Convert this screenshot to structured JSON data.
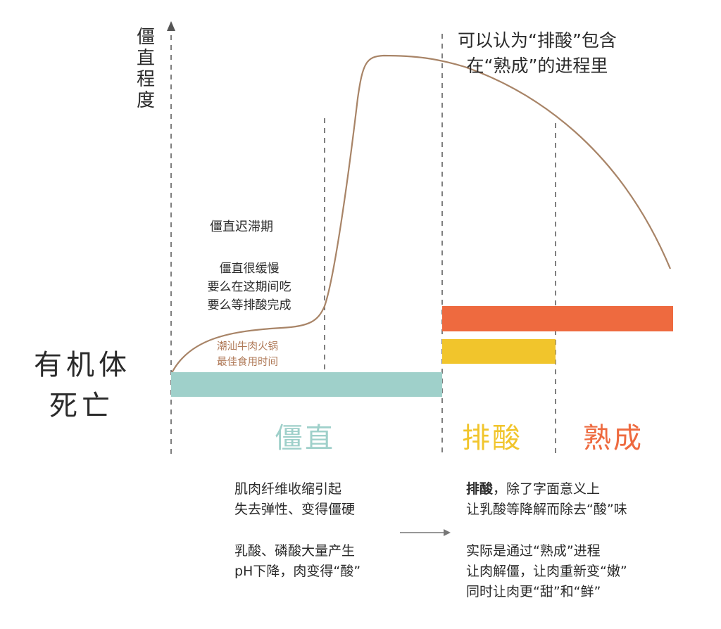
{
  "y_axis_label": "僵直程度",
  "left_label": [
    "有机体",
    "死亡"
  ],
  "top_note": [
    "可以认为“排酸”包含",
    "在“熟成”的进程里"
  ],
  "lag_title": "僵直迟滞期",
  "lag_desc": [
    "僵直很缓慢",
    "要么在这期间吃",
    "要么等排酸完成"
  ],
  "chaoshan_note": [
    "潮汕牛肉火锅",
    "最佳食用时间"
  ],
  "phases": {
    "rigor": "僵直",
    "acid_removal": "排酸",
    "aging": "熟成"
  },
  "colors": {
    "rigor": "#9fd0ca",
    "acid_removal": "#f1c52c",
    "aging": "#ee6a3f",
    "curve": "#a88467"
  },
  "left_desc": {
    "p1": [
      "肌肉纤维收缩引起",
      "失去弹性、变得僵硬"
    ],
    "p2": [
      "乳酸、磷酸大量产生",
      "pH下降，肉变得“酸”"
    ]
  },
  "right_desc": {
    "p1_bold": "排酸",
    "p1_rest": "，除了字面意义上",
    "p1_line2": "让乳酸等降解而除去“酸”味",
    "p2": [
      "实际是通过“熟成”进程",
      "让肉解僵，让肉重新变“嫩”",
      "同时让肉更“甜”和“鲜”"
    ]
  }
}
